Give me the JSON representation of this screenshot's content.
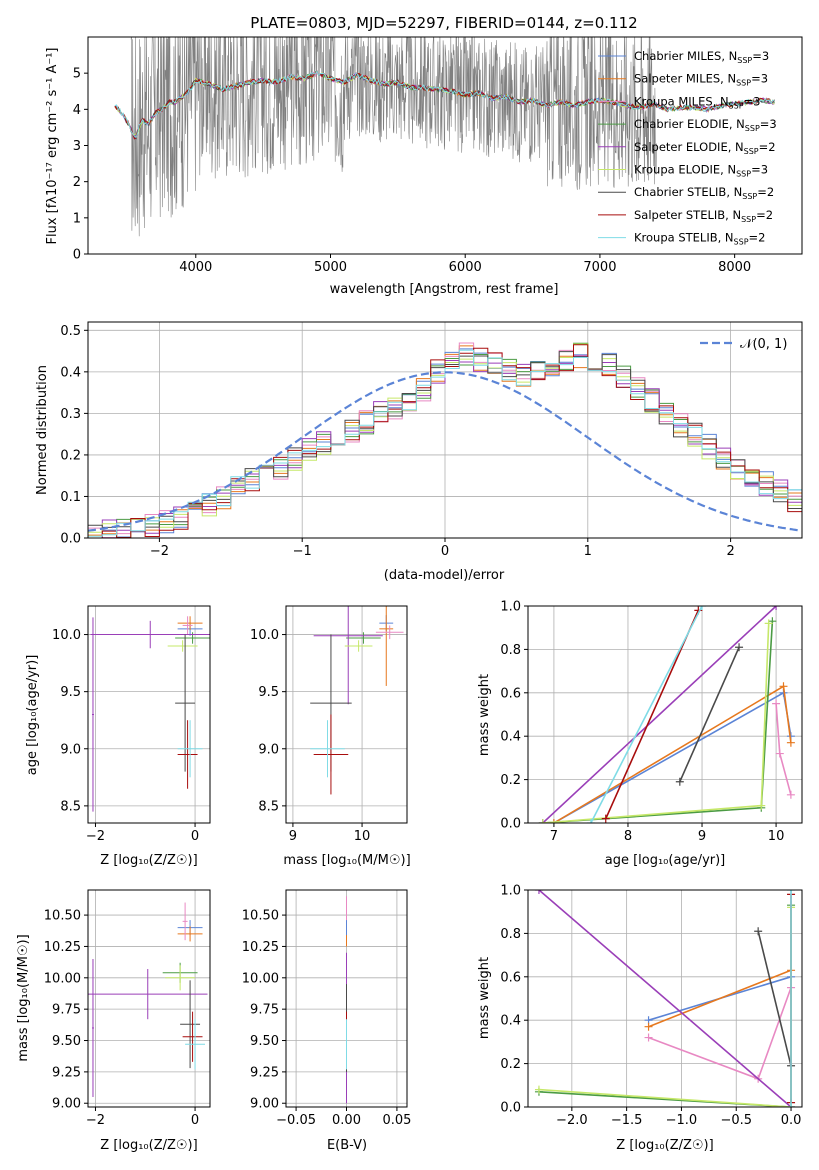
{
  "colors": {
    "chabrier_miles": "#5b84d6",
    "salpeter_miles": "#e6781e",
    "kroupa_miles": "#e889c3",
    "chabrier_elodie": "#4b9b44",
    "salpeter_elodie": "#9a3fb8",
    "kroupa_elodie": "#c6e86a",
    "chabrier_stelib": "#4a4a4a",
    "salpeter_stelib": "#a80d0d",
    "kroupa_stelib": "#7fdbe6",
    "observed": "#808080",
    "normal_curve": "#5b84d6"
  },
  "legend_series": [
    {
      "label": "Chabrier MILES, N",
      "sub": "SSP",
      "suffix": "=3",
      "color_key": "chabrier_miles"
    },
    {
      "label": "Salpeter MILES, N",
      "sub": "SSP",
      "suffix": "=3",
      "color_key": "salpeter_miles"
    },
    {
      "label": "Kroupa MILES, N",
      "sub": "SSP",
      "suffix": "=3",
      "color_key": "kroupa_miles"
    },
    {
      "label": "Chabrier ELODIE, N",
      "sub": "SSP",
      "suffix": "=3",
      "color_key": "chabrier_elodie"
    },
    {
      "label": "Salpeter ELODIE, N",
      "sub": "SSP",
      "suffix": "=2",
      "color_key": "salpeter_elodie"
    },
    {
      "label": "Kroupa ELODIE, N",
      "sub": "SSP",
      "suffix": "=3",
      "color_key": "kroupa_elodie"
    },
    {
      "label": "Chabrier STELIB, N",
      "sub": "SSP",
      "suffix": "=2",
      "color_key": "chabrier_stelib"
    },
    {
      "label": "Salpeter STELIB, N",
      "sub": "SSP",
      "suffix": "=2",
      "color_key": "salpeter_stelib"
    },
    {
      "label": "Kroupa STELIB, N",
      "sub": "SSP",
      "suffix": "=2",
      "color_key": "kroupa_stelib"
    }
  ],
  "chart_data": [
    {
      "id": "spectrum",
      "type": "line",
      "title": "PLATE=0803, MJD=52297, FIBERID=0144, z=0.112",
      "xlabel": "wavelength [Angstrom, rest frame]",
      "ylabel": "Flux [fλ10⁻¹⁷ erg cm⁻² s⁻¹ A⁻¹]",
      "xlim": [
        3200,
        8500
      ],
      "ylim": [
        0,
        6
      ],
      "xticks": [
        4000,
        5000,
        6000,
        7000,
        8000
      ],
      "yticks": [
        0,
        1,
        2,
        3,
        4,
        5
      ],
      "grid": false,
      "legend_position": "top-right",
      "model_continuum": {
        "x": [
          3400,
          3450,
          3500,
          3550,
          3600,
          3650,
          3700,
          3750,
          3800,
          3850,
          3900,
          3950,
          4000,
          4100,
          4200,
          4300,
          4400,
          4500,
          4600,
          4700,
          4800,
          4900,
          5000,
          5100,
          5200,
          5300,
          5400,
          5500,
          5600,
          5700,
          5800,
          5900,
          6000,
          6100,
          6200,
          6300,
          6400,
          6500,
          6600,
          6700,
          6800,
          6900,
          7000,
          7100,
          7200,
          7300,
          7400,
          7500,
          7600,
          7700,
          7800,
          7900,
          8000,
          8100,
          8200,
          8300
        ],
        "y": [
          4.1,
          3.9,
          3.6,
          3.2,
          3.7,
          3.6,
          3.9,
          4.0,
          4.2,
          4.2,
          4.35,
          4.5,
          4.8,
          4.7,
          4.55,
          4.65,
          4.75,
          4.8,
          4.75,
          4.9,
          4.85,
          5.0,
          4.85,
          4.75,
          4.95,
          4.8,
          4.7,
          4.75,
          4.6,
          4.6,
          4.55,
          4.5,
          4.4,
          4.45,
          4.3,
          4.35,
          4.2,
          4.25,
          4.1,
          4.2,
          4.1,
          4.2,
          4.25,
          4.2,
          4.1,
          4.05,
          4.15,
          4.0,
          4.05,
          4.05,
          4.0,
          4.1,
          4.15,
          4.2,
          4.25,
          4.2
        ]
      }
    },
    {
      "id": "residuals",
      "type": "line",
      "xlabel": "(data-model)/error",
      "ylabel": "Normed distribution",
      "xlim": [
        -2.5,
        2.5
      ],
      "ylim": [
        0,
        0.52
      ],
      "xticks": [
        -2,
        -1,
        0,
        1,
        2
      ],
      "xticklabels": [
        "−2",
        "−1",
        "0",
        "1",
        "2"
      ],
      "yticks": [
        0.0,
        0.1,
        0.2,
        0.3,
        0.4,
        0.5
      ],
      "yticklabels": [
        "0.0",
        "0.1",
        "0.2",
        "0.3",
        "0.4",
        "0.5"
      ],
      "grid": true,
      "legend_position": "top-right",
      "legend_label": "𝒩(0, 1)",
      "bin_width": 0.1,
      "bin_start": -2.5,
      "histogram_envelope": [
        0.01,
        0.02,
        0.02,
        0.03,
        0.03,
        0.04,
        0.05,
        0.07,
        0.08,
        0.1,
        0.12,
        0.14,
        0.15,
        0.17,
        0.19,
        0.21,
        0.23,
        0.25,
        0.26,
        0.28,
        0.3,
        0.31,
        0.33,
        0.36,
        0.4,
        0.43,
        0.44,
        0.43,
        0.42,
        0.4,
        0.39,
        0.41,
        0.42,
        0.43,
        0.44,
        0.43,
        0.42,
        0.39,
        0.36,
        0.33,
        0.3,
        0.27,
        0.25,
        0.22,
        0.19,
        0.17,
        0.14,
        0.13,
        0.11,
        0.09,
        0.08
      ]
    },
    {
      "id": "z_age",
      "type": "scatter",
      "xlabel": "Z [log₁₀(Z/Z☉)]",
      "ylabel": "age  [log₁₀(age/yr)]",
      "xlim": [
        -2.15,
        0.3
      ],
      "ylim": [
        8.35,
        10.25
      ],
      "xticks": [
        -2,
        0
      ],
      "xticklabels": [
        "−2",
        "0"
      ],
      "yticks": [
        8.5,
        9.0,
        9.5,
        10.0
      ],
      "yticklabels": [
        "8.5",
        "9.0",
        "9.5",
        "10.0"
      ],
      "grid": true,
      "points": [
        {
          "s": "chabrier_miles",
          "x": -0.1,
          "y": 10.05,
          "xe": 0.25,
          "ye": 0.06
        },
        {
          "s": "salpeter_miles",
          "x": -0.1,
          "y": 10.1,
          "xe": 0.25,
          "ye": 0.06
        },
        {
          "s": "kroupa_miles",
          "x": -0.15,
          "y": 10.08,
          "xe": 0.1,
          "ye": 0.08
        },
        {
          "s": "chabrier_elodie",
          "x": -0.05,
          "y": 9.97,
          "xe": 0.35,
          "ye": 0.05
        },
        {
          "s": "salpeter_elodie",
          "x": -0.9,
          "y": 10.0,
          "xe": 1.2,
          "ye": 0.12
        },
        {
          "s": "kroupa_elodie",
          "x": -0.25,
          "y": 9.9,
          "xe": 0.3,
          "ye": 0.05
        },
        {
          "s": "chabrier_stelib",
          "x": -0.2,
          "y": 9.4,
          "xe": 0.2,
          "ye": 0.6
        },
        {
          "s": "salpeter_stelib",
          "x": -0.15,
          "y": 8.95,
          "xe": 0.2,
          "ye": 0.3
        },
        {
          "s": "kroupa_stelib",
          "x": -0.1,
          "y": 9.0,
          "xe": 0.25,
          "ye": 0.25
        },
        {
          "s": "salpeter_elodie",
          "x": -2.05,
          "y": 9.3,
          "xe": 0.02,
          "ye": 0.85
        }
      ]
    },
    {
      "id": "mass_age",
      "type": "scatter",
      "xlabel": "mass [log₁₀(M/M☉)]",
      "ylabel": "",
      "xlim": [
        8.9,
        10.65
      ],
      "ylim": [
        8.35,
        10.25
      ],
      "xticks": [
        9,
        10
      ],
      "xticklabels": [
        "9",
        "10"
      ],
      "yticks": [
        8.5,
        9.0,
        9.5,
        10.0
      ],
      "yticklabels": [
        "8.5",
        "9.0",
        "9.5",
        "10.0"
      ],
      "grid": true,
      "points": [
        {
          "s": "chabrier_miles",
          "x": 10.35,
          "y": 10.1,
          "xe": 0.1,
          "ye": 0.07
        },
        {
          "s": "salpeter_miles",
          "x": 10.35,
          "y": 10.05,
          "xe": 0.1,
          "ye": 0.5
        },
        {
          "s": "kroupa_miles",
          "x": 10.4,
          "y": 10.02,
          "xe": 0.2,
          "ye": 0.06
        },
        {
          "s": "chabrier_elodie",
          "x": 10.02,
          "y": 9.97,
          "xe": 0.25,
          "ye": 0.05
        },
        {
          "s": "salpeter_elodie",
          "x": 9.8,
          "y": 9.99,
          "xe": 0.5,
          "ye": 0.6
        },
        {
          "s": "kroupa_elodie",
          "x": 9.95,
          "y": 9.9,
          "xe": 0.2,
          "ye": 0.05
        },
        {
          "s": "chabrier_stelib",
          "x": 9.55,
          "y": 9.4,
          "xe": 0.3,
          "ye": 0.6
        },
        {
          "s": "salpeter_stelib",
          "x": 9.55,
          "y": 8.95,
          "xe": 0.25,
          "ye": 0.35
        },
        {
          "s": "kroupa_stelib",
          "x": 9.5,
          "y": 9.0,
          "xe": 0.25,
          "ye": 0.25
        }
      ]
    },
    {
      "id": "age_weight",
      "type": "line",
      "xlabel": "age  [log₁₀(age/yr)]",
      "ylabel": "mass weight",
      "xlim": [
        6.65,
        10.35
      ],
      "ylim": [
        0.0,
        1.0
      ],
      "xticks": [
        7,
        8,
        9,
        10
      ],
      "xticklabels": [
        "7",
        "8",
        "9",
        "10"
      ],
      "yticks": [
        0.0,
        0.2,
        0.4,
        0.6,
        0.8,
        1.0
      ],
      "yticklabels": [
        "0.0",
        "0.2",
        "0.4",
        "0.6",
        "0.8",
        "1.0"
      ],
      "grid": true,
      "series": [
        {
          "s": "chabrier_miles",
          "x": [
            7.0,
            10.1,
            10.2
          ],
          "y": [
            0.0,
            0.6,
            0.4
          ]
        },
        {
          "s": "salpeter_miles",
          "x": [
            7.0,
            10.1,
            10.2
          ],
          "y": [
            0.0,
            0.63,
            0.37
          ]
        },
        {
          "s": "kroupa_miles",
          "x": [
            10.0,
            10.05,
            10.2
          ],
          "y": [
            0.55,
            0.32,
            0.13
          ]
        },
        {
          "s": "chabrier_elodie",
          "x": [
            6.85,
            9.8,
            9.95
          ],
          "y": [
            0.0,
            0.07,
            0.93
          ]
        },
        {
          "s": "salpeter_elodie",
          "x": [
            6.85,
            10.0
          ],
          "y": [
            0.0,
            1.0
          ]
        },
        {
          "s": "kroupa_elodie",
          "x": [
            6.85,
            9.8,
            9.9
          ],
          "y": [
            0.0,
            0.08,
            0.92
          ]
        },
        {
          "s": "chabrier_stelib",
          "x": [
            8.7,
            9.5
          ],
          "y": [
            0.19,
            0.81
          ]
        },
        {
          "s": "salpeter_stelib",
          "x": [
            7.7,
            8.95
          ],
          "y": [
            0.02,
            0.98
          ]
        },
        {
          "s": "kroupa_stelib",
          "x": [
            7.5,
            9.0
          ],
          "y": [
            0.0,
            1.0
          ]
        }
      ]
    },
    {
      "id": "z_mass",
      "type": "scatter",
      "xlabel": "Z [log₁₀(Z/Z☉)]",
      "ylabel": "mass [log₁₀(M/M☉)]",
      "xlim": [
        -2.15,
        0.3
      ],
      "ylim": [
        8.97,
        10.7
      ],
      "xticks": [
        -2,
        0
      ],
      "xticklabels": [
        "−2",
        "0"
      ],
      "yticks": [
        9.0,
        9.25,
        9.5,
        9.75,
        10.0,
        10.25,
        10.5
      ],
      "yticklabels": [
        "9.00",
        "9.25",
        "9.50",
        "9.75",
        "10.00",
        "10.25",
        "10.50"
      ],
      "grid": true,
      "points": [
        {
          "s": "chabrier_miles",
          "x": -0.1,
          "y": 10.4,
          "xe": 0.25,
          "ye": 0.06
        },
        {
          "s": "salpeter_miles",
          "x": -0.1,
          "y": 10.35,
          "xe": 0.25,
          "ye": 0.06
        },
        {
          "s": "kroupa_miles",
          "x": -0.2,
          "y": 10.45,
          "xe": 0.05,
          "ye": 0.15
        },
        {
          "s": "chabrier_elodie",
          "x": -0.3,
          "y": 10.04,
          "xe": 0.35,
          "ye": 0.08
        },
        {
          "s": "salpeter_elodie",
          "x": -0.95,
          "y": 9.87,
          "xe": 1.2,
          "ye": 0.2
        },
        {
          "s": "kroupa_elodie",
          "x": -0.3,
          "y": 10.0,
          "xe": 0.3,
          "ye": 0.1
        },
        {
          "s": "chabrier_stelib",
          "x": -0.1,
          "y": 9.63,
          "xe": 0.2,
          "ye": 0.35
        },
        {
          "s": "salpeter_stelib",
          "x": -0.05,
          "y": 9.53,
          "xe": 0.2,
          "ye": 0.2
        },
        {
          "s": "kroupa_stelib",
          "x": 0.0,
          "y": 9.47,
          "xe": 0.2,
          "ye": 0.2
        },
        {
          "s": "salpeter_elodie",
          "x": -2.05,
          "y": 9.6,
          "xe": 0.02,
          "ye": 0.55
        }
      ]
    },
    {
      "id": "ebv_mass",
      "type": "scatter",
      "xlabel": "E(B-V)",
      "ylabel": "",
      "xlim": [
        -0.06,
        0.06
      ],
      "ylim": [
        8.97,
        10.7
      ],
      "xticks": [
        -0.05,
        0.0,
        0.05
      ],
      "xticklabels": [
        "−0.05",
        "0.00",
        "0.05"
      ],
      "yticks": [
        9.0,
        9.25,
        9.5,
        9.75,
        10.0,
        10.25,
        10.5
      ],
      "yticklabels": [
        "9.00",
        "9.25",
        "9.50",
        "9.75",
        "10.00",
        "10.25",
        "10.50"
      ],
      "grid": true,
      "points": [
        {
          "s": "kroupa_miles",
          "x": 0.0,
          "y": 10.45,
          "xe": 0.0,
          "ye": 0.2
        },
        {
          "s": "salpeter_miles",
          "x": 0.0,
          "y": 10.35,
          "xe": 0.0,
          "ye": 0.1
        },
        {
          "s": "chabrier_miles",
          "x": 0.0,
          "y": 10.4,
          "xe": 0.0,
          "ye": 0.06
        },
        {
          "s": "kroupa_elodie",
          "x": 0.0,
          "y": 10.0,
          "xe": 0.0,
          "ye": 0.12
        },
        {
          "s": "chabrier_elodie",
          "x": 0.0,
          "y": 10.04,
          "xe": 0.0,
          "ye": 0.1
        },
        {
          "s": "salpeter_elodie",
          "x": 0.0,
          "y": 9.6,
          "xe": 0.0,
          "ye": 0.6
        },
        {
          "s": "chabrier_stelib",
          "x": 0.0,
          "y": 9.6,
          "xe": 0.0,
          "ye": 0.35
        },
        {
          "s": "salpeter_stelib",
          "x": 0.0,
          "y": 9.53,
          "xe": 0.0,
          "ye": 0.2
        },
        {
          "s": "kroupa_stelib",
          "x": 0.0,
          "y": 9.47,
          "xe": 0.0,
          "ye": 0.2
        }
      ]
    },
    {
      "id": "z_weight",
      "type": "line",
      "xlabel": "Z [log₁₀(Z/Z☉)]",
      "ylabel": "mass weight",
      "xlim": [
        -2.4,
        0.1
      ],
      "ylim": [
        0.0,
        1.0
      ],
      "xticks": [
        -2.0,
        -1.5,
        -1.0,
        -0.5,
        0.0
      ],
      "xticklabels": [
        "−2.0",
        "−1.5",
        "−1.0",
        "−0.5",
        "0.0"
      ],
      "yticks": [
        0.0,
        0.2,
        0.4,
        0.6,
        0.8,
        1.0
      ],
      "yticklabels": [
        "0.0",
        "0.2",
        "0.4",
        "0.6",
        "0.8",
        "1.0"
      ],
      "grid": true,
      "series": [
        {
          "s": "chabrier_miles",
          "x": [
            -1.3,
            0.0
          ],
          "y": [
            0.4,
            0.6
          ]
        },
        {
          "s": "salpeter_miles",
          "x": [
            -1.3,
            0.0
          ],
          "y": [
            0.37,
            0.63
          ]
        },
        {
          "s": "kroupa_miles",
          "x": [
            -1.3,
            -0.3,
            0.0
          ],
          "y": [
            0.32,
            0.13,
            0.55
          ]
        },
        {
          "s": "chabrier_elodie",
          "x": [
            -2.3,
            0.0,
            0.0
          ],
          "y": [
            0.07,
            0.0,
            0.93
          ]
        },
        {
          "s": "salpeter_elodie",
          "x": [
            -2.3,
            0.0
          ],
          "y": [
            1.0,
            0.0
          ]
        },
        {
          "s": "kroupa_elodie",
          "x": [
            -2.3,
            0.0,
            0.0
          ],
          "y": [
            0.08,
            0.0,
            0.92
          ]
        },
        {
          "s": "chabrier_stelib",
          "x": [
            -0.3,
            0.0
          ],
          "y": [
            0.81,
            0.19
          ]
        },
        {
          "s": "salpeter_stelib",
          "x": [
            0.0,
            0.0
          ],
          "y": [
            0.02,
            0.98
          ]
        },
        {
          "s": "kroupa_stelib",
          "x": [
            0.0,
            0.0
          ],
          "y": [
            0.0,
            1.0
          ]
        }
      ]
    }
  ]
}
